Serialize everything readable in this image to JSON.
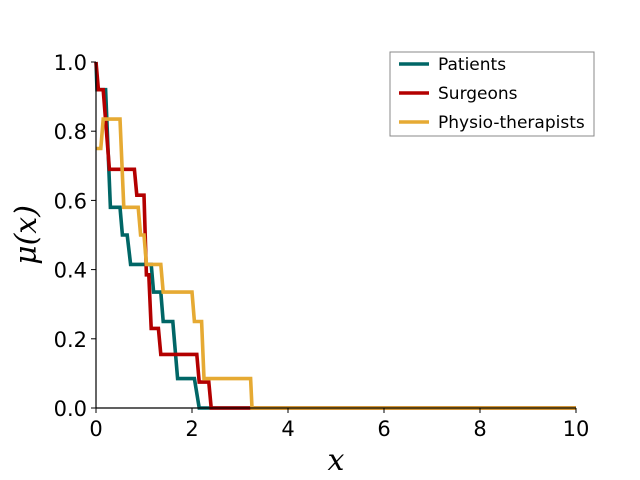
{
  "chart_data": {
    "type": "line",
    "title": "",
    "xlabel": "x",
    "ylabel": "μ(x)",
    "xlim": [
      0,
      10
    ],
    "ylim": [
      0,
      1.0
    ],
    "xticks": [
      0,
      2,
      4,
      6,
      8,
      10
    ],
    "yticks": [
      0.0,
      0.2,
      0.4,
      0.6,
      0.8,
      1.0
    ],
    "xtick_labels": [
      "0",
      "2",
      "4",
      "6",
      "8",
      "10"
    ],
    "ytick_labels": [
      "0.0",
      "0.2",
      "0.4",
      "0.6",
      "0.8",
      "1.0"
    ],
    "grid": false,
    "legend_position": "top-right",
    "series": [
      {
        "name": "Patients",
        "color": "#006666",
        "step_points": [
          [
            0,
            1.0
          ],
          [
            0.02,
            0.92
          ],
          [
            0.2,
            0.92
          ],
          [
            0.3,
            0.58
          ],
          [
            0.5,
            0.58
          ],
          [
            0.55,
            0.5
          ],
          [
            0.65,
            0.5
          ],
          [
            0.72,
            0.415
          ],
          [
            1.15,
            0.415
          ],
          [
            1.2,
            0.335
          ],
          [
            1.35,
            0.335
          ],
          [
            1.4,
            0.25
          ],
          [
            1.6,
            0.25
          ],
          [
            1.7,
            0.085
          ],
          [
            2.05,
            0.085
          ],
          [
            2.15,
            0.0
          ],
          [
            10,
            0.0
          ]
        ]
      },
      {
        "name": "Surgeons",
        "color": "#b30000",
        "step_points": [
          [
            0,
            1.0
          ],
          [
            0.05,
            0.92
          ],
          [
            0.15,
            0.92
          ],
          [
            0.28,
            0.69
          ],
          [
            0.8,
            0.69
          ],
          [
            0.85,
            0.615
          ],
          [
            1.0,
            0.615
          ],
          [
            1.05,
            0.385
          ],
          [
            1.1,
            0.385
          ],
          [
            1.15,
            0.23
          ],
          [
            1.3,
            0.23
          ],
          [
            1.35,
            0.155
          ],
          [
            2.1,
            0.155
          ],
          [
            2.15,
            0.075
          ],
          [
            2.35,
            0.075
          ],
          [
            2.4,
            0.0
          ],
          [
            10,
            0.0
          ]
        ]
      },
      {
        "name": "Physio-therapists",
        "color": "#e6aa33",
        "step_points": [
          [
            0,
            0.75
          ],
          [
            0.1,
            0.75
          ],
          [
            0.15,
            0.835
          ],
          [
            0.5,
            0.835
          ],
          [
            0.58,
            0.58
          ],
          [
            0.88,
            0.58
          ],
          [
            0.93,
            0.5
          ],
          [
            1.0,
            0.5
          ],
          [
            1.05,
            0.415
          ],
          [
            1.35,
            0.415
          ],
          [
            1.4,
            0.335
          ],
          [
            2.0,
            0.335
          ],
          [
            2.05,
            0.25
          ],
          [
            2.2,
            0.25
          ],
          [
            2.25,
            0.085
          ],
          [
            3.22,
            0.085
          ],
          [
            3.25,
            0.0
          ],
          [
            10,
            0.0
          ]
        ]
      }
    ]
  }
}
